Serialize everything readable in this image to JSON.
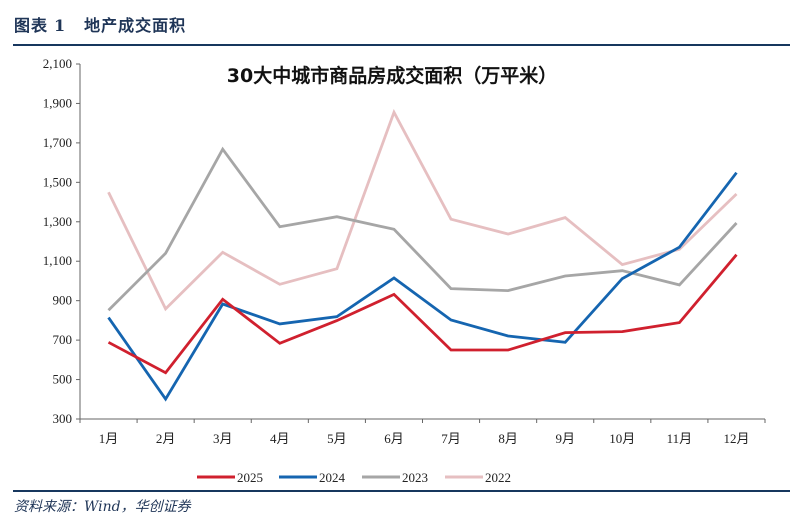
{
  "header": {
    "label": "图表",
    "number": "1",
    "title": "地产成交面积"
  },
  "source": "资料来源：Wind，华创证券",
  "chart_data": {
    "type": "line",
    "title": "30大中城市商品房成交面积（万平米）",
    "categories": [
      "1月",
      "2月",
      "3月",
      "4月",
      "5月",
      "6月",
      "7月",
      "8月",
      "9月",
      "10月",
      "11月",
      "12月"
    ],
    "ylim": [
      300,
      2100
    ],
    "yticks": [
      300,
      500,
      700,
      900,
      1100,
      1300,
      1500,
      1700,
      1900,
      2100
    ],
    "ytick_labels": [
      "300",
      "500",
      "700",
      "900",
      "1,100",
      "1,300",
      "1,500",
      "1,700",
      "1,900",
      "2,100"
    ],
    "grid": false,
    "legend": "bottom",
    "series": [
      {
        "name": "2025",
        "color": "#d0202e",
        "values": [
          689,
          535,
          907,
          684,
          799,
          932,
          650,
          650,
          738,
          743,
          789,
          1133
        ]
      },
      {
        "name": "2024",
        "color": "#1565b0",
        "values": [
          814,
          401,
          883,
          782,
          819,
          1015,
          802,
          721,
          689,
          1012,
          1171,
          1549
        ]
      },
      {
        "name": "2023",
        "color": "#a6a6a6",
        "values": [
          851,
          1140,
          1668,
          1275,
          1326,
          1262,
          961,
          951,
          1025,
          1052,
          980,
          1294
        ]
      },
      {
        "name": "2022",
        "color": "#e6bfc1",
        "values": [
          1450,
          858,
          1145,
          983,
          1062,
          1855,
          1313,
          1238,
          1321,
          1083,
          1161,
          1441
        ]
      }
    ]
  }
}
